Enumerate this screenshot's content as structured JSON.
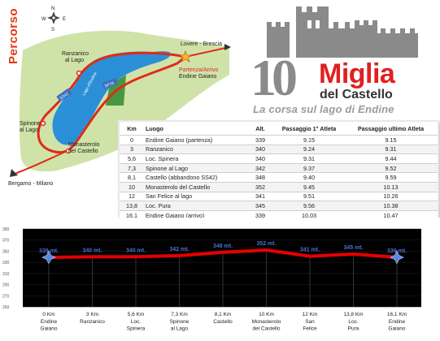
{
  "map": {
    "side_label": "Percorso",
    "compass": {
      "n": "N",
      "s": "S",
      "e": "E",
      "w": "W"
    },
    "places": {
      "lovere": "Lovere - Brescia",
      "ranzanico_1": "Ranzanico",
      "ranzanico_2": "al Lago",
      "partenza_1": "Partenza/Arrivo",
      "partenza_2": "Endine Gaiano",
      "spinone_1": "Spinone",
      "spinone_2": "al Lago",
      "monasterolo_1": "Monasterolo",
      "monasterolo_2": "del Castello",
      "bergamo": "Bergamo - Milano",
      "lake": "Lago d'Endine",
      "road_sp76": "SP76",
      "road_ss42": "SS42"
    },
    "colors": {
      "lake": "#2b8fd8",
      "route": "#e02a1a",
      "land": "#cfe3a8"
    }
  },
  "logo": {
    "number": "10",
    "title": "Miglia",
    "subtitle": "del Castello",
    "tagline": "La corsa sul lago di Endine",
    "colors": {
      "title": "#e02020",
      "number": "#8a8a8a",
      "tagline": "#9a9a9a"
    }
  },
  "table": {
    "headers": {
      "km": "Km",
      "luogo": "Luogo",
      "alt": "Alt.",
      "first": "Passaggio 1° Atleta",
      "last": "Passaggio ultimo Atleta"
    },
    "rows": [
      {
        "km": "0",
        "luogo": "Endine Gaiano (partenza)",
        "alt": "339",
        "first": "9.15",
        "last": "9.15"
      },
      {
        "km": "3",
        "luogo": "Ranzanico",
        "alt": "340",
        "first": "9.24",
        "last": "9.31"
      },
      {
        "km": "5,6",
        "luogo": "Loc. Spinera",
        "alt": "340",
        "first": "9.31",
        "last": "9.44"
      },
      {
        "km": "7,3",
        "luogo": "Spinone al Lago",
        "alt": "342",
        "first": "9.37",
        "last": "9.52"
      },
      {
        "km": "8,1",
        "luogo": "Castello (abbandono SS42)",
        "alt": "348",
        "first": "9.40",
        "last": "9.59"
      },
      {
        "km": "10",
        "luogo": "Monasterolo del Castello",
        "alt": "352",
        "first": "9.45",
        "last": "10.13"
      },
      {
        "km": "12",
        "luogo": "San Felice al lago",
        "alt": "341",
        "first": "9.51",
        "last": "10.26"
      },
      {
        "km": "13,8",
        "luogo": "Loc. Pura",
        "alt": "345",
        "first": "9.56",
        "last": "10.38"
      },
      {
        "km": "16,1",
        "luogo": "Endine Gaiano (arrivo)",
        "alt": "339",
        "first": "10.03",
        "last": "10.47"
      }
    ]
  },
  "chart_data": {
    "type": "line",
    "title": "",
    "xlabel": "",
    "ylabel": "",
    "ylim": [
      250,
      390
    ],
    "yticks": [
      "390",
      "370",
      "350",
      "330",
      "310",
      "290",
      "270",
      "250"
    ],
    "categories": [
      "0 Km",
      "3 Km",
      "5,6 Km",
      "7,3 Km",
      "8,1 Km",
      "10 Km",
      "12 Km",
      "13,8 Km",
      "16,1 Km"
    ],
    "places": [
      "Endine Gaiano",
      "Ranzanico",
      "Loc. Spinera",
      "Spinone al Lago",
      "Castello",
      "Monasterolo del Castello",
      "San Felice",
      "Loc. Pura",
      "Endine Gaiano"
    ],
    "values": [
      339,
      340,
      340,
      342,
      348,
      352,
      341,
      345,
      339
    ],
    "value_labels": [
      "339 mt.",
      "340 mt.",
      "340 mt.",
      "342 mt.",
      "348 mt.",
      "352 mt.",
      "341 mt.",
      "345 mt.",
      "339 mt."
    ],
    "colors": {
      "line": "#e60000",
      "background": "#000000",
      "labels": "#4a6fd0"
    }
  }
}
